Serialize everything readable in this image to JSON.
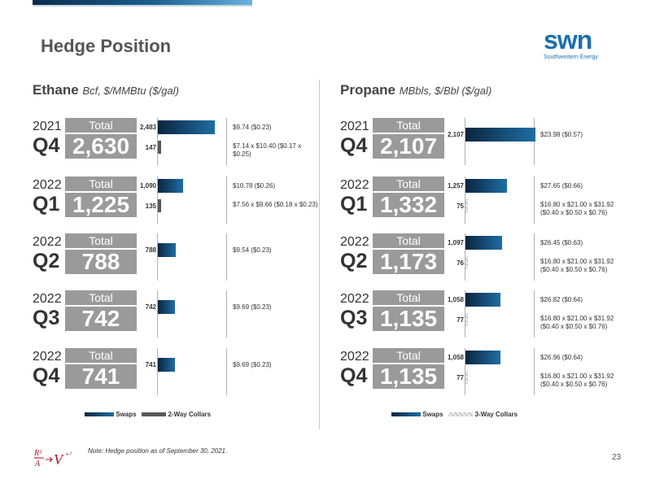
{
  "header": {
    "title": "Hedge Position"
  },
  "logo": {
    "word": "swn",
    "sub": "Southwestern Energy"
  },
  "colors": {
    "swap_dark": "#0b2540",
    "swap_light": "#1e6ea3",
    "collar": "#5a5a5a",
    "total_box": "#9a9a9a",
    "brand": "#1d6fb0"
  },
  "ethane": {
    "title": "Ethane",
    "unit": "Bcf, $/MMBtu ($/gal)",
    "rows": [
      {
        "year": "2021",
        "quarter": "Q4",
        "total_label": "Total",
        "total": "2,630",
        "swap": "2,483",
        "swap_price": "$9.74 ($0.23)",
        "collar": "147",
        "collar_price": "$7.14 x $10.40 ($0.17 x $0.25)"
      },
      {
        "year": "2022",
        "quarter": "Q1",
        "total_label": "Total",
        "total": "1,225",
        "swap": "1,090",
        "swap_price": "$10.78 ($0.26)",
        "collar": "135",
        "collar_price": "$7.56 x $9.66 ($0.18 x $0.23)"
      },
      {
        "year": "2022",
        "quarter": "Q2",
        "total_label": "Total",
        "total": "788",
        "swap": "788",
        "swap_price": "$9.54 ($0.23)"
      },
      {
        "year": "2022",
        "quarter": "Q3",
        "total_label": "Total",
        "total": "742",
        "swap": "742",
        "swap_price": "$9.69 ($0.23)"
      },
      {
        "year": "2022",
        "quarter": "Q4",
        "total_label": "Total",
        "total": "741",
        "swap": "741",
        "swap_price": "$9.69 ($0.23)"
      }
    ],
    "legend": {
      "swaps": "Swaps",
      "collars": "2-Way Collars"
    }
  },
  "propane": {
    "title": "Propane",
    "unit": "MBbls, $/Bbl ($/gal)",
    "rows": [
      {
        "year": "2021",
        "quarter": "Q4",
        "total_label": "Total",
        "total": "2,107",
        "swap": "2,107",
        "swap_price": "$23.98 ($0.57)"
      },
      {
        "year": "2022",
        "quarter": "Q1",
        "total_label": "Total",
        "total": "1,332",
        "swap": "1,257",
        "swap_price": "$27.65 ($0.66)",
        "collar": "75",
        "collar_price": "$16.80 x $21.00 x $31.92 ($0.40 x $0.50 x $0.76)"
      },
      {
        "year": "2022",
        "quarter": "Q2",
        "total_label": "Total",
        "total": "1,173",
        "swap": "1,097",
        "swap_price": "$26.45 ($0.63)",
        "collar": "76",
        "collar_price": "$16.80 x $21.00 x $31.92 ($0.40 x $0.50 x $0.76)"
      },
      {
        "year": "2022",
        "quarter": "Q3",
        "total_label": "Total",
        "total": "1,135",
        "swap": "1,058",
        "swap_price": "$26.82 ($0.64)",
        "collar": "77",
        "collar_price": "$16.80 x $21.00 x $31.92 ($0.40 x $0.50 x $0.76)"
      },
      {
        "year": "2022",
        "quarter": "Q4",
        "total_label": "Total",
        "total": "1,135",
        "swap": "1,058",
        "swap_price": "$26.96 ($0.64)",
        "collar": "77",
        "collar_price": "$16.80 x $21.00 x $31.92 ($0.40 x $0.50 x $0.76)"
      }
    ],
    "legend": {
      "swaps": "Swaps",
      "collars": "3-Way Collars"
    }
  },
  "footer": {
    "note": "Note: Hedge position as of September 30, 2021.",
    "page": "23"
  }
}
